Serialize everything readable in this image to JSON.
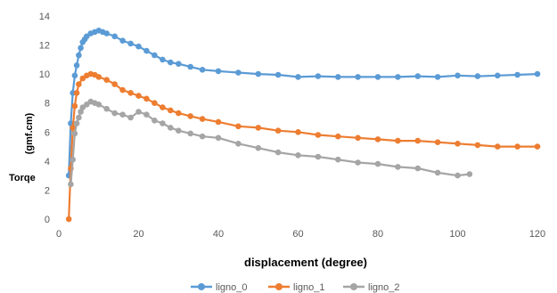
{
  "chart_data": {
    "type": "line",
    "title": "",
    "xlabel": "displacement (degree)",
    "ylabel_lines": [
      "Torqe",
      "(gmf.cm)"
    ],
    "xlim": [
      0,
      125
    ],
    "ylim": [
      0,
      14
    ],
    "xticks": [
      "0",
      "20",
      "40",
      "60",
      "80",
      "100",
      "120"
    ],
    "yticks": [
      "0",
      "2",
      "4",
      "6",
      "8",
      "10",
      "12",
      "14"
    ],
    "grid": false,
    "legend_position": "bottom",
    "series": [
      {
        "name": "ligno_0",
        "color": "#5B9BD5",
        "x": [
          2.5,
          3,
          3.5,
          4,
          4.5,
          5,
          5.5,
          6,
          6.5,
          7,
          8,
          9,
          10,
          11,
          12,
          14,
          16,
          18,
          20,
          22,
          24,
          26,
          28,
          30,
          33,
          36,
          40,
          45,
          50,
          55,
          60,
          65,
          70,
          75,
          80,
          85,
          90,
          95,
          100,
          105,
          110,
          115,
          120
        ],
        "y": [
          3.0,
          6.6,
          8.7,
          9.9,
          10.6,
          11.3,
          11.8,
          12.2,
          12.4,
          12.6,
          12.8,
          12.9,
          13.0,
          12.9,
          12.8,
          12.6,
          12.3,
          12.1,
          11.9,
          11.6,
          11.3,
          11.0,
          10.8,
          10.7,
          10.5,
          10.3,
          10.2,
          10.1,
          10.0,
          9.95,
          9.8,
          9.85,
          9.8,
          9.8,
          9.8,
          9.8,
          9.85,
          9.8,
          9.9,
          9.85,
          9.9,
          9.95,
          10.0
        ]
      },
      {
        "name": "ligno_1",
        "color": "#ED7D31",
        "x": [
          2.5,
          3,
          3.5,
          4,
          4.5,
          5,
          6,
          7,
          8,
          9,
          10,
          12,
          14,
          16,
          18,
          20,
          22,
          24,
          26,
          28,
          30,
          33,
          36,
          40,
          45,
          50,
          55,
          60,
          65,
          70,
          75,
          80,
          85,
          90,
          95,
          100,
          105,
          110,
          115,
          120
        ],
        "y": [
          0.0,
          3.5,
          6.3,
          7.8,
          8.7,
          9.3,
          9.7,
          9.9,
          10.0,
          9.95,
          9.8,
          9.6,
          9.3,
          8.9,
          8.7,
          8.5,
          8.3,
          8.0,
          7.7,
          7.5,
          7.3,
          7.1,
          6.9,
          6.7,
          6.4,
          6.3,
          6.1,
          6.0,
          5.8,
          5.7,
          5.6,
          5.5,
          5.4,
          5.4,
          5.3,
          5.2,
          5.1,
          5.0,
          5.0,
          5.0
        ]
      },
      {
        "name": "ligno_2",
        "color": "#A5A5A5",
        "x": [
          3,
          3.5,
          4,
          4.5,
          5,
          5.5,
          6,
          7,
          8,
          9,
          10,
          12,
          14,
          16,
          18,
          20,
          22,
          24,
          26,
          28,
          30,
          33,
          36,
          40,
          45,
          50,
          55,
          60,
          65,
          70,
          75,
          80,
          85,
          90,
          95,
          100,
          103
        ],
        "y": [
          2.4,
          4.1,
          5.9,
          6.6,
          7.0,
          7.4,
          7.7,
          7.9,
          8.1,
          8.0,
          7.9,
          7.6,
          7.3,
          7.2,
          7.0,
          7.4,
          7.2,
          6.8,
          6.6,
          6.3,
          6.1,
          5.9,
          5.7,
          5.6,
          5.2,
          4.9,
          4.6,
          4.4,
          4.3,
          4.1,
          3.9,
          3.8,
          3.6,
          3.5,
          3.2,
          3.0,
          3.1
        ]
      }
    ]
  }
}
